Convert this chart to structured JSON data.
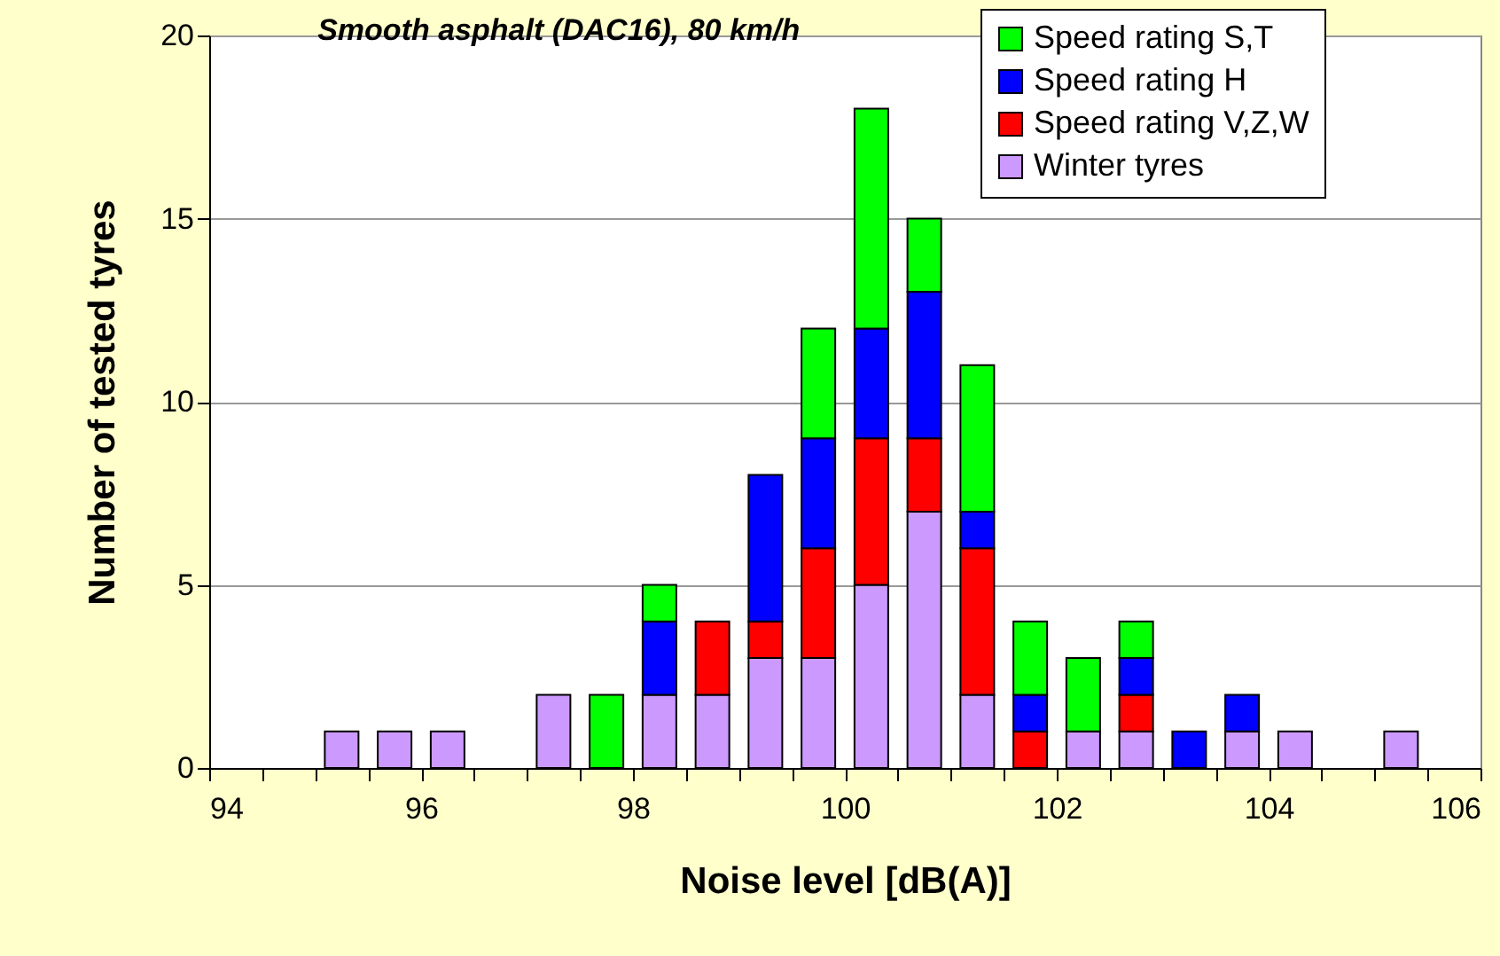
{
  "chart_data": {
    "type": "bar",
    "title": "Smooth asphalt (DAC16), 80 km/h",
    "xlabel": "Noise level [dB(A)]",
    "ylabel": "Number of tested tyres",
    "x": [
      95.25,
      95.75,
      96.25,
      97.25,
      97.75,
      98.25,
      98.75,
      99.25,
      99.75,
      100.25,
      100.75,
      101.25,
      101.75,
      102.25,
      102.75,
      103.25,
      103.75,
      104.25,
      105.25
    ],
    "stacked": true,
    "series": [
      {
        "name": "Winter tyres",
        "color": "#cc99ff",
        "values": [
          1,
          1,
          1,
          2,
          null,
          2,
          2,
          3,
          3,
          5,
          7,
          2,
          null,
          1,
          1,
          null,
          1,
          1,
          1
        ]
      },
      {
        "name": "Speed rating V,Z,W",
        "color": "#ff0000",
        "values": [
          null,
          null,
          null,
          null,
          null,
          null,
          2,
          1,
          3,
          4,
          2,
          4,
          1,
          null,
          1,
          null,
          null,
          null,
          null
        ]
      },
      {
        "name": "Speed rating H",
        "color": "#0000ff",
        "values": [
          null,
          null,
          null,
          null,
          null,
          2,
          null,
          4,
          3,
          3,
          4,
          1,
          1,
          null,
          1,
          1,
          1,
          null,
          null
        ]
      },
      {
        "name": "Speed rating S,T",
        "color": "#00ff00",
        "values": [
          null,
          null,
          null,
          null,
          2,
          1,
          null,
          null,
          3,
          6,
          2,
          4,
          2,
          2,
          1,
          null,
          null,
          null,
          null
        ]
      }
    ],
    "xlim": [
      94,
      106
    ],
    "xticks": [
      94,
      {
        "value": 94.5,
        "label": null
      },
      {
        "value": 95,
        "label": null
      },
      {
        "value": 95.5,
        "label": null
      },
      96,
      {
        "value": 96.5,
        "label": null
      },
      {
        "value": 97,
        "label": null
      },
      {
        "value": 97.5,
        "label": null
      },
      98,
      {
        "value": 98.5,
        "label": null
      },
      {
        "value": 99,
        "label": null
      },
      {
        "value": 99.5,
        "label": null
      },
      100,
      {
        "value": 100.5,
        "label": null
      },
      {
        "value": 101,
        "label": null
      },
      {
        "value": 101.5,
        "label": null
      },
      102,
      {
        "value": 102.5,
        "label": null
      },
      {
        "value": 103,
        "label": null
      },
      {
        "value": 103.5,
        "label": null
      },
      104,
      {
        "value": 104.5,
        "label": null
      },
      {
        "value": 105,
        "label": null
      },
      {
        "value": 105.5,
        "label": null
      },
      106
    ],
    "ylim": [
      0,
      20
    ],
    "yticks": [
      0,
      5,
      10,
      15,
      20
    ],
    "grid": "y",
    "legend": "top right"
  }
}
